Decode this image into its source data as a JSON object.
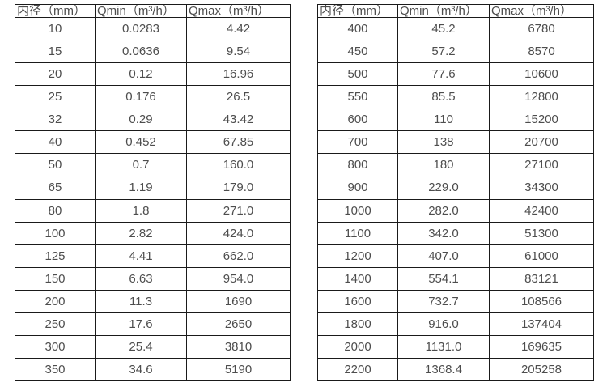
{
  "page": {
    "background": "#ffffff",
    "text_color": "#4d4d4d",
    "border_color": "#1a1a1a"
  },
  "tables": [
    {
      "name": "flow-table-small-diameters",
      "headers": [
        "内径（mm）",
        "Qmin（m³/h）",
        "Qmax（m³/h）"
      ],
      "rows": [
        [
          "10",
          "0.0283",
          "4.42"
        ],
        [
          "15",
          "0.0636",
          "9.54"
        ],
        [
          "20",
          "0.12",
          "16.96"
        ],
        [
          "25",
          "0.176",
          "26.5"
        ],
        [
          "32",
          "0.29",
          "43.42"
        ],
        [
          "40",
          "0.452",
          "67.85"
        ],
        [
          "50",
          "0.7",
          "160.0"
        ],
        [
          "65",
          "1.19",
          "179.0"
        ],
        [
          "80",
          "1.8",
          "271.0"
        ],
        [
          "100",
          "2.82",
          "424.0"
        ],
        [
          "125",
          "4.41",
          "662.0"
        ],
        [
          "150",
          "6.63",
          "954.0"
        ],
        [
          "200",
          "11.3",
          "1690"
        ],
        [
          "250",
          "17.6",
          "2650"
        ],
        [
          "300",
          "25.4",
          "3810"
        ],
        [
          "350",
          "34.6",
          "5190"
        ]
      ]
    },
    {
      "name": "flow-table-large-diameters",
      "headers": [
        "内径（mm）",
        "Qmin（m³/h）",
        "Qmax（m³/h）"
      ],
      "rows": [
        [
          "400",
          "45.2",
          "6780"
        ],
        [
          "450",
          "57.2",
          "8570"
        ],
        [
          "500",
          "77.6",
          "10600"
        ],
        [
          "550",
          "85.5",
          "12800"
        ],
        [
          "600",
          "110",
          "15200"
        ],
        [
          "700",
          "138",
          "20700"
        ],
        [
          "800",
          "180",
          "27100"
        ],
        [
          "900",
          "229.0",
          "34300"
        ],
        [
          "1000",
          "282.0",
          "42400"
        ],
        [
          "1100",
          "342.0",
          "51300"
        ],
        [
          "1200",
          "407.0",
          "61000"
        ],
        [
          "1400",
          "554.1",
          "83121"
        ],
        [
          "1600",
          "732.7",
          "108566"
        ],
        [
          "1800",
          "916.0",
          "137404"
        ],
        [
          "2000",
          "1131.0",
          "169635"
        ],
        [
          "2200",
          "1368.4",
          "205258"
        ]
      ]
    }
  ]
}
